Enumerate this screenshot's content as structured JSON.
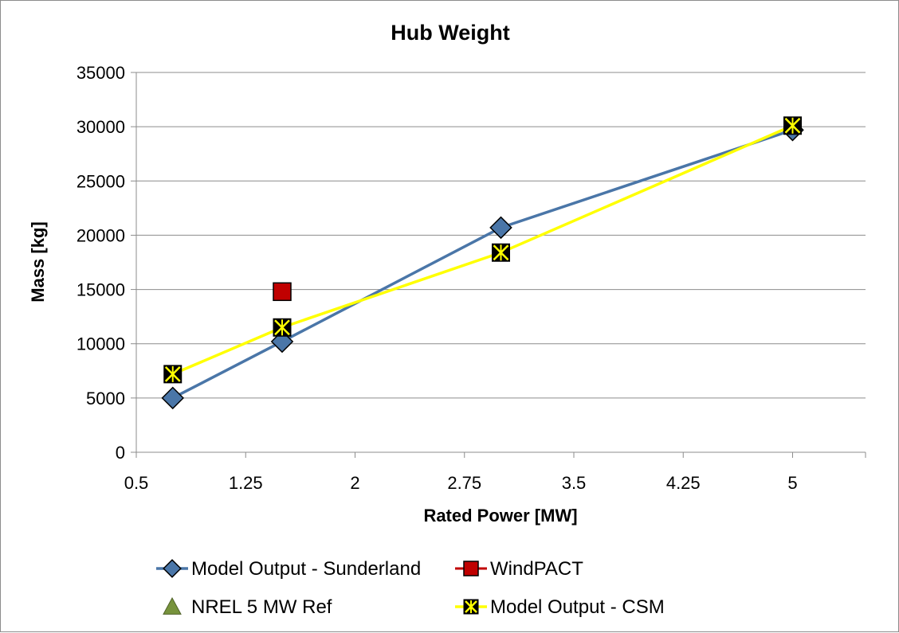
{
  "chart_data": {
    "type": "scatter",
    "title": "Hub Weight",
    "xlabel": "Rated Power [MW]",
    "ylabel": "Mass [kg]",
    "xlim": [
      0.5,
      5.5
    ],
    "ylim": [
      0,
      35000
    ],
    "x_ticks": [
      0.5,
      1.25,
      2,
      2.75,
      3.5,
      4.25,
      5
    ],
    "x_tick_labels": [
      "0.5",
      "1.25",
      "2",
      "2.75",
      "3.5",
      "4.25",
      "5"
    ],
    "y_ticks": [
      0,
      5000,
      10000,
      15000,
      20000,
      25000,
      30000,
      35000
    ],
    "y_tick_labels": [
      "0",
      "5000",
      "10000",
      "15000",
      "20000",
      "25000",
      "30000",
      "35000"
    ],
    "grid": "horizontal",
    "legend_position": "bottom",
    "series": [
      {
        "name": "Model Output - Sunderland",
        "x": [
          0.75,
          1.5,
          3.0,
          5.0
        ],
        "y": [
          5000,
          10200,
          20700,
          29700
        ],
        "color": "#4a76a8",
        "marker": "diamond",
        "line": true
      },
      {
        "name": "WindPACT",
        "x": [
          1.5
        ],
        "y": [
          14800
        ],
        "color": "#c00000",
        "marker": "square",
        "line": false
      },
      {
        "name": "NREL 5 MW Ref",
        "x": [],
        "y": [],
        "color": "#77933c",
        "marker": "triangle",
        "line": false
      },
      {
        "name": "Model Output - CSM",
        "x": [
          0.75,
          1.5,
          3.0,
          5.0
        ],
        "y": [
          7200,
          11500,
          18400,
          30100
        ],
        "color": "#ffff00",
        "marker": "x-square",
        "line": true
      }
    ]
  }
}
